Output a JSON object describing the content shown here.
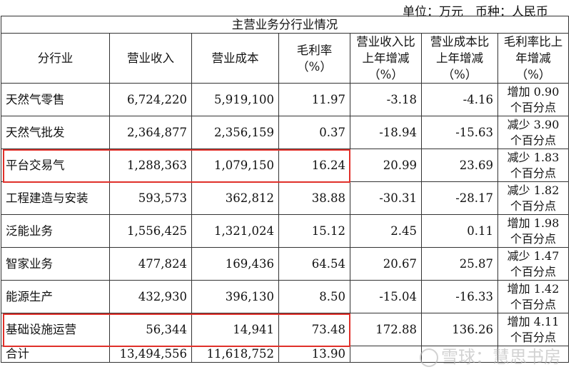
{
  "unit_line": "单位：万元　币种：人民币",
  "table_title": "主营业务分行业情况",
  "headers": [
    "分行业",
    "营业收入",
    "营业成本",
    "毛利率（%）",
    "营业收入比上年增减（%）",
    "营业成本比上年增减（%）",
    "毛利率比上年增减（%）"
  ],
  "rows": [
    {
      "industry": "天然气零售",
      "revenue": "6,724,220",
      "cost": "5,919,100",
      "margin": "11.97",
      "rev_chg": "-3.18",
      "cost_chg": "-4.16",
      "margin_chg": "增加 0.90 个百分点",
      "highlighted": false
    },
    {
      "industry": "天然气批发",
      "revenue": "2,364,877",
      "cost": "2,356,159",
      "margin": "0.37",
      "rev_chg": "-18.94",
      "cost_chg": "-15.63",
      "margin_chg": "减少 3.90 个百分点",
      "highlighted": false
    },
    {
      "industry": "平台交易气",
      "revenue": "1,288,363",
      "cost": "1,079,150",
      "margin": "16.24",
      "rev_chg": "20.99",
      "cost_chg": "23.69",
      "margin_chg": "减少 1.83 个百分点",
      "highlighted": true
    },
    {
      "industry": "工程建造与安装",
      "revenue": "593,573",
      "cost": "362,812",
      "margin": "38.88",
      "rev_chg": "-30.31",
      "cost_chg": "-28.17",
      "margin_chg": "减少 1.82 个百分点",
      "highlighted": false
    },
    {
      "industry": "泛能业务",
      "revenue": "1,556,425",
      "cost": "1,321,024",
      "margin": "15.12",
      "rev_chg": "2.45",
      "cost_chg": "0.11",
      "margin_chg": "增加 1.98 个百分点",
      "highlighted": false
    },
    {
      "industry": "智家业务",
      "revenue": "477,824",
      "cost": "169,436",
      "margin": "64.54",
      "rev_chg": "20.67",
      "cost_chg": "25.87",
      "margin_chg": "减少 1.47 个百分点",
      "highlighted": false
    },
    {
      "industry": "能源生产",
      "revenue": "432,930",
      "cost": "396,130",
      "margin": "8.50",
      "rev_chg": "-15.04",
      "cost_chg": "-16.33",
      "margin_chg": "增加 1.42 个百分点",
      "highlighted": false
    },
    {
      "industry": "基础设施运营",
      "revenue": "56,344",
      "cost": "14,941",
      "margin": "73.48",
      "rev_chg": "172.88",
      "cost_chg": "136.26",
      "margin_chg": "增加 4.11 个百分点",
      "highlighted": true
    }
  ],
  "total": {
    "label": "合计",
    "revenue": "13,494,556",
    "cost": "11,618,752",
    "margin": "13.90"
  },
  "watermark": "雪球：慧思书房",
  "highlight_color": "#e0302a"
}
